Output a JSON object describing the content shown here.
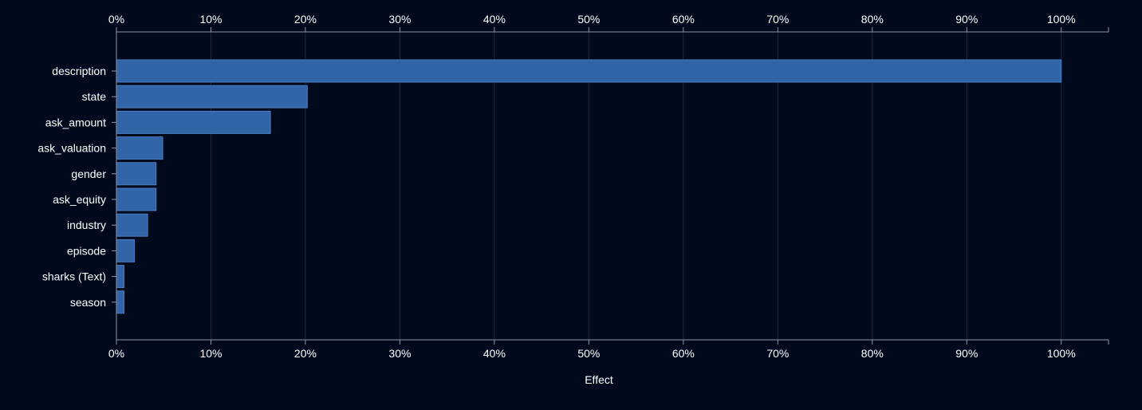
{
  "chart_data": {
    "type": "bar",
    "orientation": "horizontal",
    "title": "",
    "xlabel": "Effect",
    "ylabel": "",
    "categories": [
      "description",
      "state",
      "ask_amount",
      "ask_valuation",
      "gender",
      "ask_equity",
      "industry",
      "episode",
      "sharks (Text)",
      "season"
    ],
    "values": [
      100,
      20.2,
      16.3,
      4.9,
      4.2,
      4.2,
      3.3,
      1.9,
      0.8,
      0.8
    ],
    "xlim": [
      0,
      105
    ],
    "ticks": [
      0,
      10,
      20,
      30,
      40,
      50,
      60,
      70,
      80,
      90,
      100
    ],
    "tick_labels": [
      "0%",
      "10%",
      "20%",
      "30%",
      "40%",
      "50%",
      "60%",
      "70%",
      "80%",
      "90%",
      "100%"
    ],
    "grid": "vertical",
    "axis_position": "top-and-bottom",
    "colors": {
      "background": "#000a1c",
      "bar": "#3264a8",
      "bar_stroke": "#4a7cc0",
      "grid": "#1c2a3f",
      "axis": "#8a96a6",
      "text": "#ffffff"
    }
  }
}
